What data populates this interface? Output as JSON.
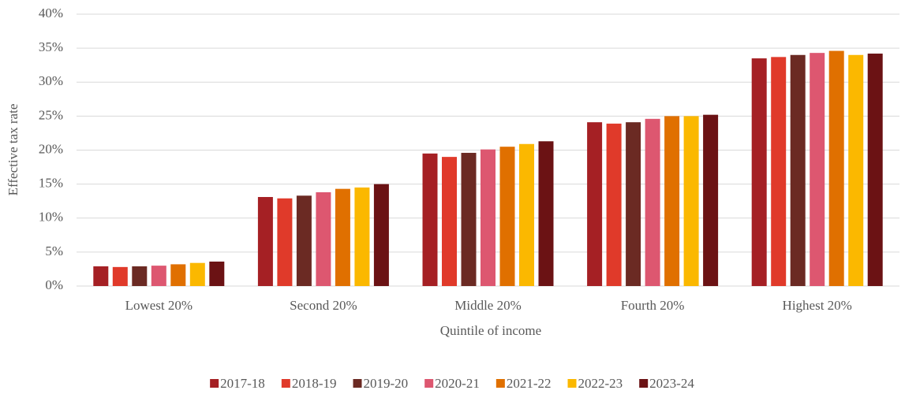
{
  "chart_data": {
    "type": "bar",
    "x_label": "Quintile of income",
    "y_label": "Effective tax rate",
    "categories": [
      "Lowest 20%",
      "Second 20%",
      "Middle 20%",
      "Fourth 20%",
      "Highest 20%"
    ],
    "series": [
      {
        "name": "2017-18",
        "color": "#a52024",
        "values": [
          2.9,
          13.1,
          19.5,
          24.1,
          33.5
        ]
      },
      {
        "name": "2018-19",
        "color": "#e03a2a",
        "values": [
          2.8,
          12.9,
          19.0,
          23.9,
          33.7
        ]
      },
      {
        "name": "2019-20",
        "color": "#6b2a23",
        "values": [
          2.9,
          13.3,
          19.6,
          24.1,
          34.0
        ]
      },
      {
        "name": "2020-21",
        "color": "#dd5770",
        "values": [
          3.0,
          13.8,
          20.1,
          24.6,
          34.3
        ]
      },
      {
        "name": "2021-22",
        "color": "#e07000",
        "values": [
          3.2,
          14.3,
          20.5,
          25.0,
          34.6
        ]
      },
      {
        "name": "2022-23",
        "color": "#fbb800",
        "values": [
          3.4,
          14.5,
          20.9,
          25.0,
          34.0
        ]
      },
      {
        "name": "2023-24",
        "color": "#6b1214",
        "values": [
          3.6,
          15.0,
          21.3,
          25.2,
          34.2
        ]
      }
    ],
    "ylim": [
      0,
      40
    ],
    "yticks": [
      {
        "value": 0,
        "label": "0%"
      },
      {
        "value": 5,
        "label": "5%"
      },
      {
        "value": 10,
        "label": "10%"
      },
      {
        "value": 15,
        "label": "15%"
      },
      {
        "value": 20,
        "label": "20%"
      },
      {
        "value": 25,
        "label": "25%"
      },
      {
        "value": 30,
        "label": "30%"
      },
      {
        "value": 35,
        "label": "35%"
      },
      {
        "value": 40,
        "label": "40%"
      }
    ],
    "grid": true,
    "legend": "bottom"
  }
}
